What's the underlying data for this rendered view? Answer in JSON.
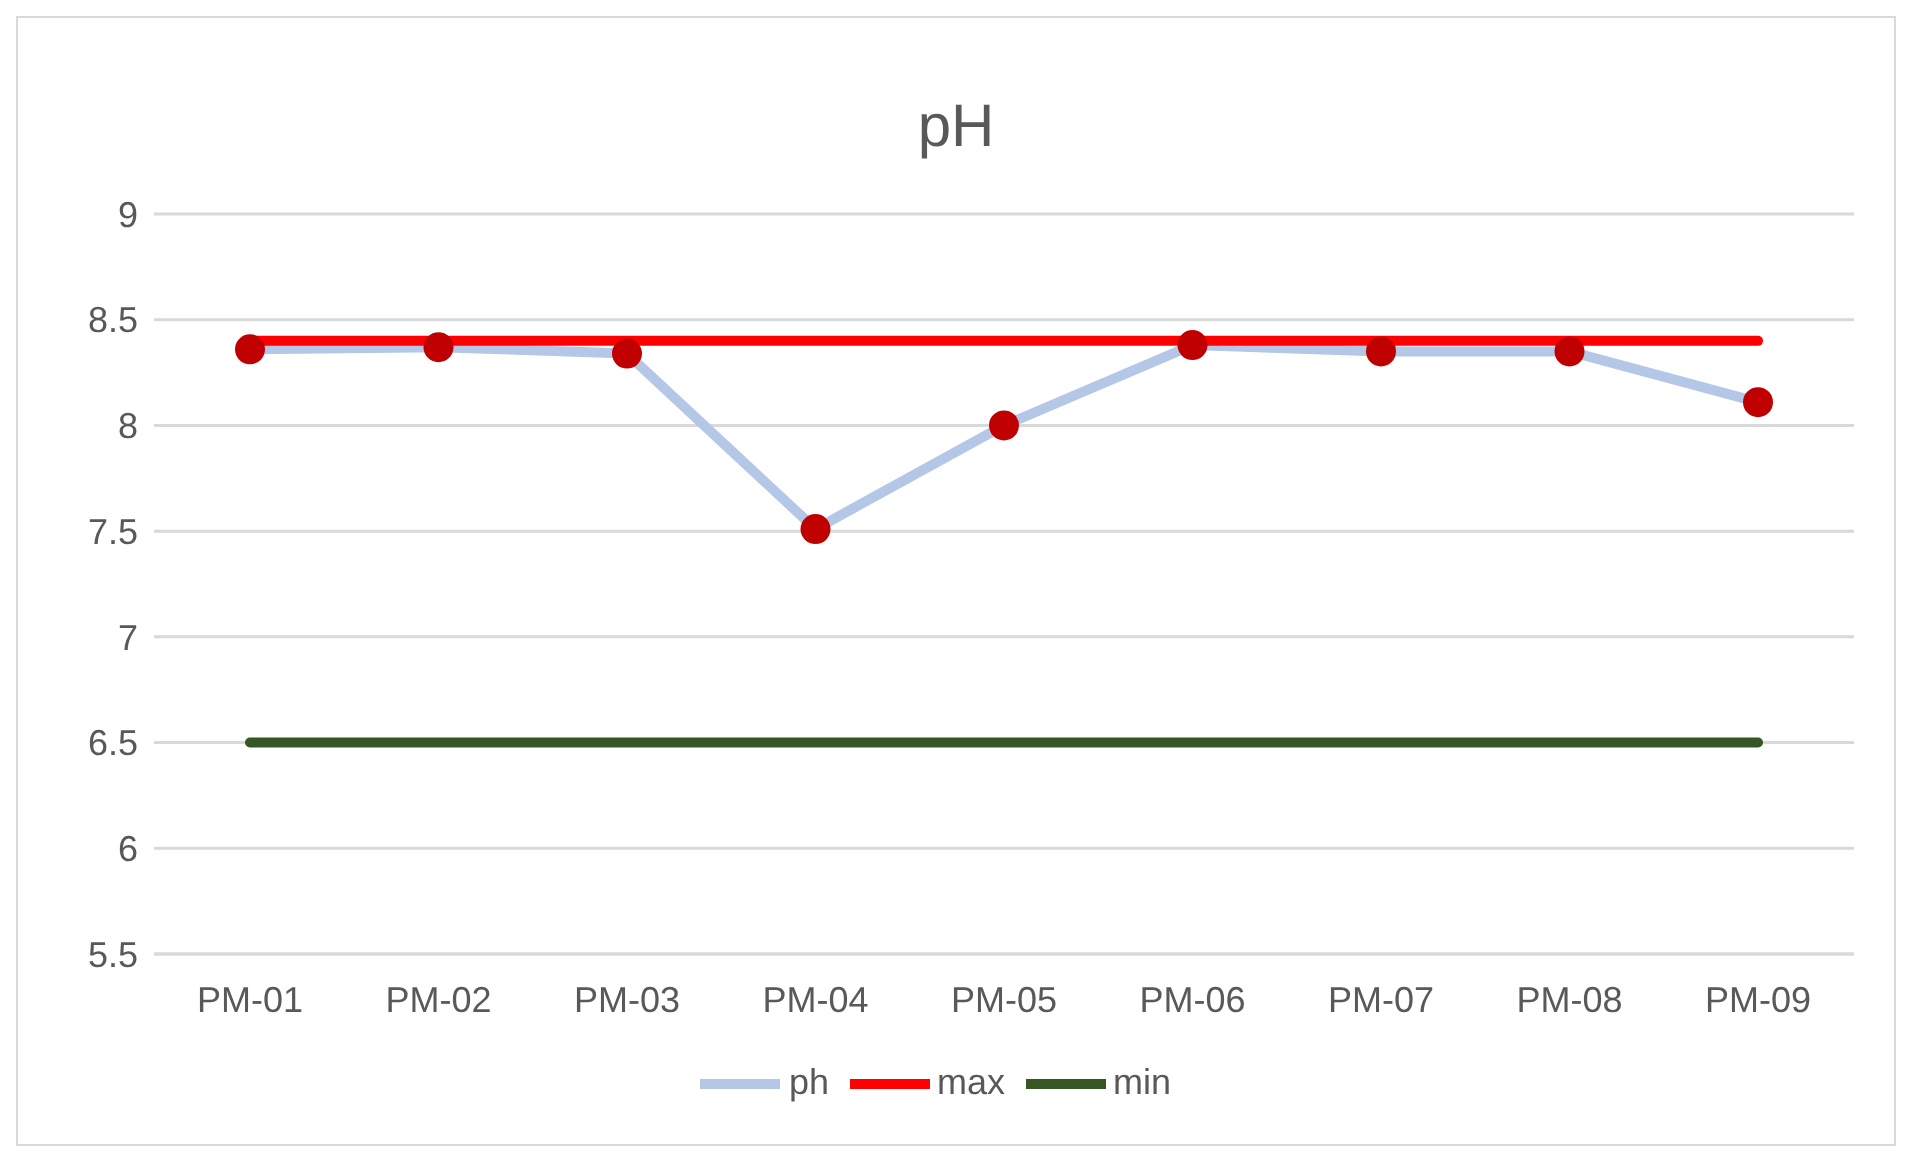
{
  "chart_data": {
    "type": "line",
    "title": "pH",
    "categories": [
      "PM-01",
      "PM-02",
      "PM-03",
      "PM-04",
      "PM-05",
      "PM-06",
      "PM-07",
      "PM-08",
      "PM-09"
    ],
    "series": [
      {
        "name": "ph",
        "color": "#b4c7e7",
        "marker": "circle",
        "colors": [
          "#c00000",
          "#c00000",
          "#c00000",
          "#c00000",
          "#c00000",
          "#c00000",
          "#c00000",
          "#c00000",
          "#c00000"
        ],
        "values": [
          8.36,
          8.37,
          8.34,
          7.51,
          8.0,
          8.38,
          8.35,
          8.35,
          8.11
        ]
      },
      {
        "name": "max",
        "color": "#ff0000",
        "marker": "none",
        "values": [
          8.4,
          8.4,
          8.4,
          8.4,
          8.4,
          8.4,
          8.4,
          8.4,
          8.4
        ]
      },
      {
        "name": "min",
        "color": "#375623",
        "marker": "none",
        "values": [
          6.5,
          6.5,
          6.5,
          6.5,
          6.5,
          6.5,
          6.5,
          6.5,
          6.5
        ]
      }
    ],
    "ylim": [
      5.5,
      9
    ],
    "yticks": [
      5.5,
      6,
      6.5,
      7,
      7.5,
      8,
      8.5,
      9
    ],
    "grid": "y",
    "legend": "bottom",
    "line_style": "solid"
  }
}
